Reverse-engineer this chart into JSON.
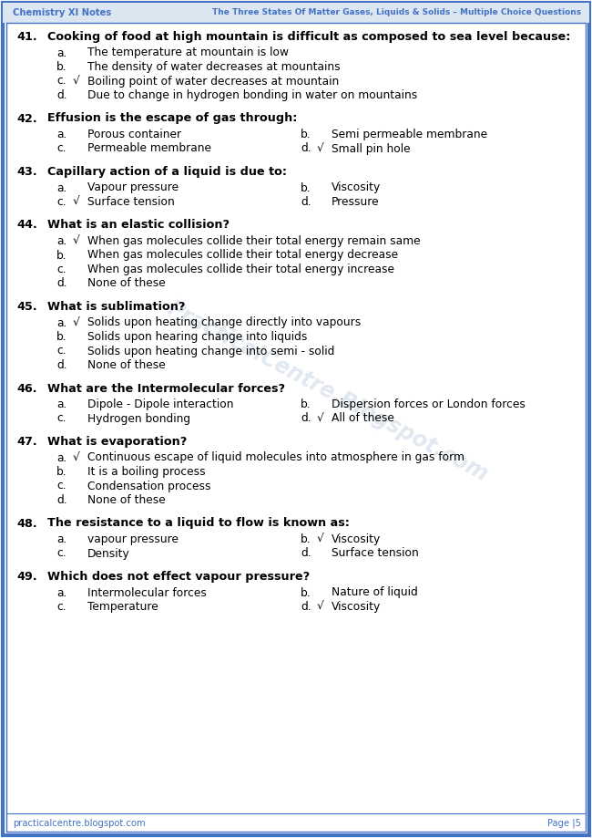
{
  "header_left": "Chemistry XI Notes",
  "header_right": "The Three States Of Matter Gases, Liquids & Solids – Multiple Choice Questions",
  "footer_left": "practicalcentre.blogspot.com",
  "footer_right": "Page |5",
  "border_color": "#4472C4",
  "header_text_color": "#4472C4",
  "text_color": "#000000",
  "bg_color": "#FFFFFF",
  "watermark_text": "PracticalCentre.Blogspot.com",
  "questions": [
    {
      "number": "41.",
      "question": "Cooking of food at high mountain is difficult as composed to sea level because:",
      "layout": "vertical",
      "options": [
        {
          "label": "a.",
          "check": "",
          "text": "The temperature at mountain is low"
        },
        {
          "label": "b.",
          "check": "",
          "text": "The density of water decreases at mountains"
        },
        {
          "label": "c.",
          "check": "√",
          "text": "Boiling point of water decreases at mountain"
        },
        {
          "label": "d.",
          "check": "",
          "text": "Due to change in hydrogen bonding in water on mountains"
        }
      ]
    },
    {
      "number": "42.",
      "question": "Effusion is the escape of gas through:",
      "layout": "two_column",
      "options": [
        {
          "label": "a.",
          "check": "",
          "text": "Porous container"
        },
        {
          "label": "b.",
          "check": "",
          "text": "Semi permeable membrane"
        },
        {
          "label": "c.",
          "check": "",
          "text": "Permeable membrane"
        },
        {
          "label": "d.",
          "check": "√",
          "text": "Small pin hole"
        }
      ]
    },
    {
      "number": "43.",
      "question": "Capillary action of a liquid is due to:",
      "layout": "two_column",
      "options": [
        {
          "label": "a.",
          "check": "",
          "text": "Vapour pressure"
        },
        {
          "label": "b.",
          "check": "",
          "text": "Viscosity"
        },
        {
          "label": "c.",
          "check": "√",
          "text": "Surface tension"
        },
        {
          "label": "d.",
          "check": "",
          "text": "Pressure"
        }
      ]
    },
    {
      "number": "44.",
      "question": "What is an elastic collision?",
      "layout": "vertical",
      "options": [
        {
          "label": "a.",
          "check": "√",
          "text": "When gas molecules collide their total energy remain same"
        },
        {
          "label": "b.",
          "check": "",
          "text": "When gas molecules collide their total energy decrease"
        },
        {
          "label": "c.",
          "check": "",
          "text": "When gas molecules collide their total energy increase"
        },
        {
          "label": "d.",
          "check": "",
          "text": "None of these"
        }
      ]
    },
    {
      "number": "45.",
      "question": "What is sublimation?",
      "layout": "vertical",
      "options": [
        {
          "label": "a.",
          "check": "√",
          "text": "Solids upon heating change directly into vapours"
        },
        {
          "label": "b.",
          "check": "",
          "text": "Solids upon hearing change into liquids"
        },
        {
          "label": "c.",
          "check": "",
          "text": "Solids upon heating change into semi - solid"
        },
        {
          "label": "d.",
          "check": "",
          "text": "None of these"
        }
      ]
    },
    {
      "number": "46.",
      "question": "What are the Intermolecular forces?",
      "layout": "two_column",
      "options": [
        {
          "label": "a.",
          "check": "",
          "text": "Dipole - Dipole interaction"
        },
        {
          "label": "b.",
          "check": "",
          "text": "Dispersion forces or London forces"
        },
        {
          "label": "c.",
          "check": "",
          "text": "Hydrogen bonding"
        },
        {
          "label": "d.",
          "check": "√",
          "text": "All of these"
        }
      ]
    },
    {
      "number": "47.",
      "question": "What is evaporation?",
      "layout": "vertical",
      "options": [
        {
          "label": "a.",
          "check": "√",
          "text": "Continuous escape of liquid molecules into atmosphere in gas form"
        },
        {
          "label": "b.",
          "check": "",
          "text": "It is a boiling process"
        },
        {
          "label": "c.",
          "check": "",
          "text": "Condensation process"
        },
        {
          "label": "d.",
          "check": "",
          "text": "None of these"
        }
      ]
    },
    {
      "number": "48.",
      "question": "The resistance to a liquid to flow is known as:",
      "layout": "two_column",
      "options": [
        {
          "label": "a.",
          "check": "",
          "text": "vapour pressure"
        },
        {
          "label": "b.",
          "check": "√",
          "text": "Viscosity"
        },
        {
          "label": "c.",
          "check": "",
          "text": "Density"
        },
        {
          "label": "d.",
          "check": "",
          "text": "Surface tension"
        }
      ]
    },
    {
      "number": "49.",
      "question": "Which does not effect vapour pressure?",
      "layout": "two_column",
      "options": [
        {
          "label": "a.",
          "check": "",
          "text": "Intermolecular forces"
        },
        {
          "label": "b.",
          "check": "",
          "text": "Nature of liquid"
        },
        {
          "label": "c.",
          "check": "",
          "text": "Temperature"
        },
        {
          "label": "d.",
          "check": "√",
          "text": "Viscosity"
        }
      ]
    }
  ]
}
